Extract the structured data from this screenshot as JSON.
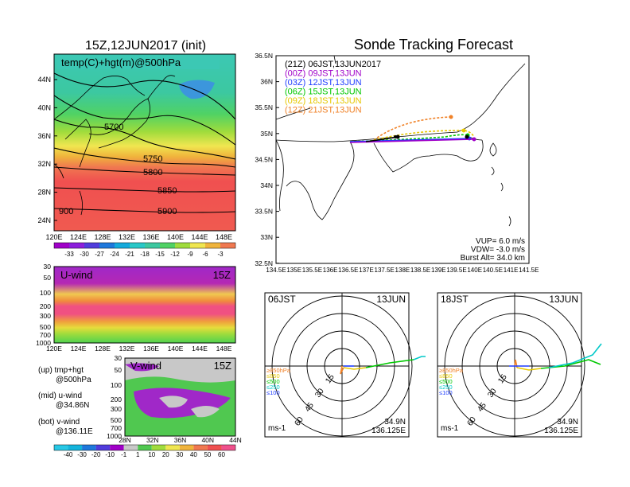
{
  "left": {
    "title": "15Z,12JUN2017 (init)",
    "top_map": {
      "label": "temp(C)+hgt(m)@500hPa",
      "lat_ticks": [
        "44N",
        "40N",
        "36N",
        "32N",
        "28N",
        "24N"
      ],
      "lon_ticks": [
        "120E",
        "124E",
        "128E",
        "132E",
        "136E",
        "140E",
        "144E",
        "148E"
      ],
      "contour_labels": [
        "5700",
        "5750",
        "5800",
        "5850",
        "5900",
        "900"
      ],
      "colorbar_labels": [
        "-33",
        "-30",
        "-27",
        "-24",
        "-21",
        "-18",
        "-15",
        "-12",
        "-9",
        "-6",
        "-3"
      ]
    },
    "u_wind": {
      "label": "U-wind",
      "time": "15Z",
      "p_ticks": [
        "30",
        "50",
        "100",
        "200",
        "300",
        "500",
        "700",
        "1000"
      ],
      "lon_ticks": [
        "120E",
        "124E",
        "128E",
        "132E",
        "136E",
        "140E",
        "144E",
        "148E"
      ]
    },
    "v_wind": {
      "label": "V-wind",
      "time": "15Z",
      "p_ticks": [
        "30",
        "50",
        "100",
        "200",
        "300",
        "500",
        "700",
        "1000"
      ],
      "lat_ticks": [
        "28N",
        "32N",
        "36N",
        "40N",
        "44N"
      ]
    },
    "legend_notes": [
      {
        "line1": "(up) tmp+hgt",
        "line2": "@500hPa"
      },
      {
        "line1": "(mid) u-wind",
        "line2": "@34.86N"
      },
      {
        "line1": "(bot) v-wind",
        "line2": "@136.11E"
      }
    ],
    "bottom_colorbar_labels": [
      "-40",
      "-30",
      "-20",
      "-10",
      "-1",
      "1",
      "10",
      "20",
      "30",
      "40",
      "50",
      "60"
    ]
  },
  "right": {
    "title": "Sonde Tracking Forecast",
    "map": {
      "lat_ticks": [
        "36.5N",
        "36N",
        "35.5N",
        "35N",
        "34.5N",
        "34N",
        "33.5N",
        "33N",
        "32.5N"
      ],
      "lon_ticks": [
        "134.5E",
        "135E",
        "135.5E",
        "136E",
        "136.5E",
        "137E",
        "137.5E",
        "138E",
        "138.5E",
        "139E",
        "139.5E",
        "140E",
        "140.5E",
        "141E",
        "141.5E"
      ],
      "legend": [
        {
          "text": "(21Z) 06JST,13JUN2017",
          "color": "#000000"
        },
        {
          "text": "(00Z) 09JST,13JUN",
          "color": "#a000c8"
        },
        {
          "text": "(03Z) 12JST,13JUN",
          "color": "#1e3cff"
        },
        {
          "text": "(06Z) 15JST,13JUN",
          "color": "#00c800"
        },
        {
          "text": "(09Z) 18JST,13JUN",
          "color": "#e6c800"
        },
        {
          "text": "(12Z) 21JST,13JUN",
          "color": "#f08228"
        }
      ],
      "params": [
        "VUP=  6.0 m/s",
        "VDW= -3.0 m/s",
        "Burst Alt= 34.0 km"
      ]
    },
    "hodographs": [
      {
        "time_label": "06JST",
        "date_label": "13JUN",
        "lat": "34.9N",
        "lon": "136.125E",
        "unit": "ms-1",
        "ring_labels": [
          "15",
          "30",
          "45",
          "60"
        ],
        "levels": [
          {
            "text": "≥850hPa",
            "color": "#f08228"
          },
          {
            "text": "≤850",
            "color": "#e6c800"
          },
          {
            "text": "≤500",
            "color": "#00c800"
          },
          {
            "text": "≤250",
            "color": "#00c8c8"
          },
          {
            "text": "≤100",
            "color": "#1e3cff"
          }
        ]
      },
      {
        "time_label": "18JST",
        "date_label": "13JUN",
        "lat": "34.9N",
        "lon": "136.125E",
        "unit": "ms-1",
        "ring_labels": [
          "15",
          "30",
          "45",
          "60"
        ],
        "levels": [
          {
            "text": "≥850hPa",
            "color": "#f08228"
          },
          {
            "text": "≤850",
            "color": "#e6c800"
          },
          {
            "text": "≤500",
            "color": "#00c800"
          },
          {
            "text": "≤250",
            "color": "#00c8c8"
          },
          {
            "text": "≤100",
            "color": "#1e3cff"
          }
        ]
      }
    ]
  }
}
